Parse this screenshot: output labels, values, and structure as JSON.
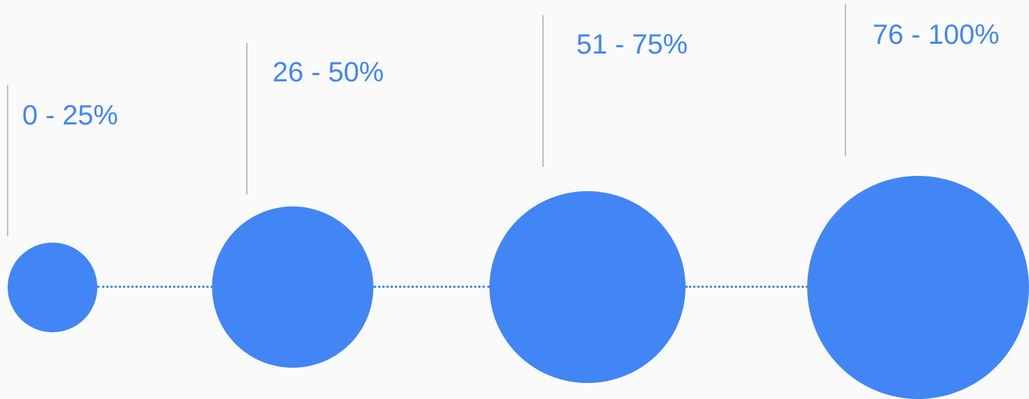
{
  "accent_color": "#4285f4",
  "divider_color": "#bdbdbd",
  "background_color": "#fafafa",
  "stages": [
    {
      "label": "0 - 25%"
    },
    {
      "label": "26 - 50%"
    },
    {
      "label": "51 - 75%"
    },
    {
      "label": "76 - 100%"
    }
  ]
}
